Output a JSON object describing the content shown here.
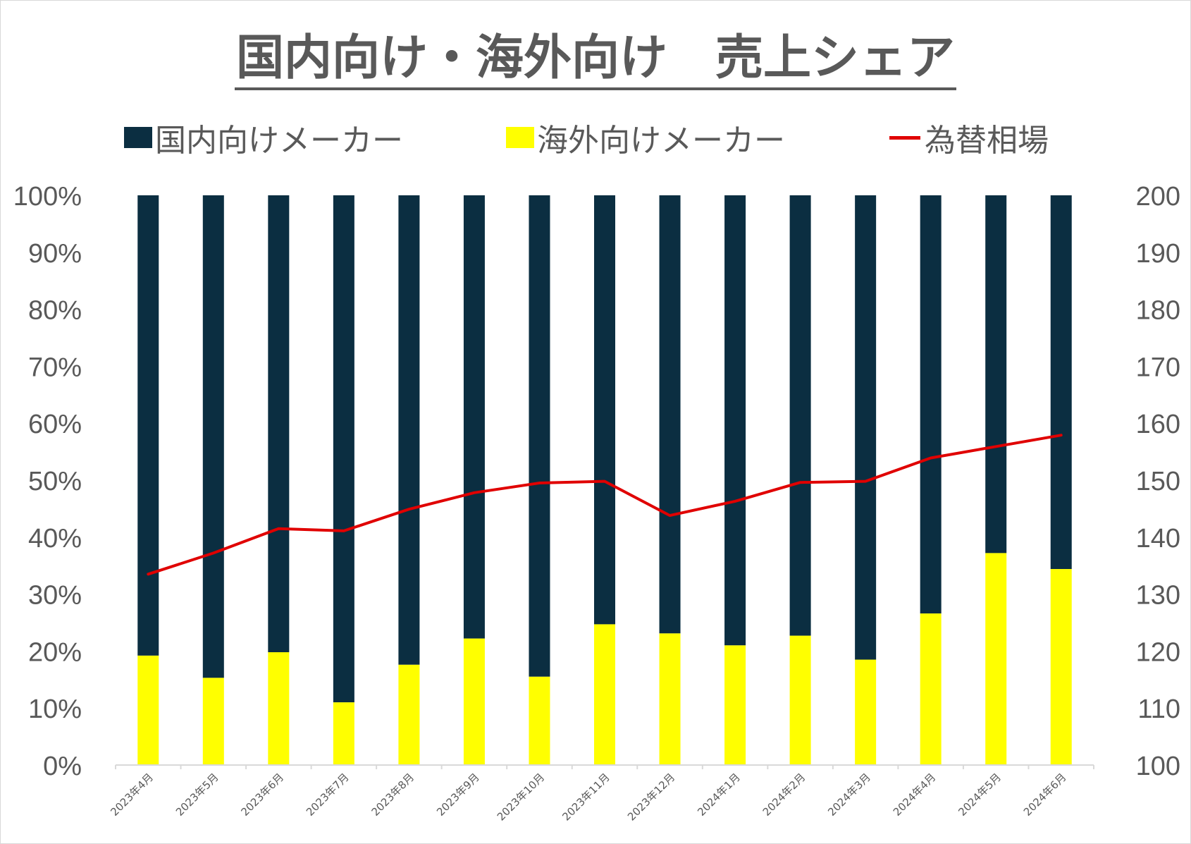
{
  "title": "国内向け・海外向け　売上シェア",
  "legend": {
    "domestic": "国内向けメーカー",
    "overseas": "海外向けメーカー",
    "fx": "為替相場"
  },
  "colors": {
    "domestic": "#0b2e41",
    "overseas": "#ffff00",
    "fx": "#e00000",
    "axis_text": "#595959"
  },
  "chart_data": {
    "type": "bar",
    "stacked": true,
    "categories": [
      "2023年4月",
      "2023年5月",
      "2023年6月",
      "2023年7月",
      "2023年8月",
      "2023年9月",
      "2023年10月",
      "2023年11月",
      "2023年12月",
      "2024年1月",
      "2024年2月",
      "2024年3月",
      "2024年4月",
      "2024年5月",
      "2024年6月"
    ],
    "series": [
      {
        "name": "海外向けメーカー",
        "type": "bar",
        "axis": "left",
        "values": [
          19.2,
          15.3,
          19.8,
          11.0,
          17.6,
          22.2,
          15.5,
          24.7,
          23.1,
          21.0,
          22.7,
          18.5,
          26.6,
          37.2,
          34.4
        ]
      },
      {
        "name": "国内向けメーカー",
        "type": "bar",
        "axis": "left",
        "values": [
          80.8,
          84.7,
          80.2,
          89.0,
          82.4,
          77.8,
          84.5,
          75.3,
          76.9,
          79.0,
          77.3,
          81.5,
          73.4,
          62.8,
          65.6
        ]
      },
      {
        "name": "為替相場",
        "type": "line",
        "axis": "right",
        "values": [
          133.5,
          137.2,
          141.5,
          141.1,
          144.9,
          147.8,
          149.5,
          149.8,
          143.8,
          146.3,
          149.6,
          149.8,
          153.9,
          155.9,
          157.9
        ]
      }
    ],
    "y_left": {
      "min": 0,
      "max": 100,
      "step": 10,
      "format": "percent",
      "ticks": [
        "0%",
        "10%",
        "20%",
        "30%",
        "40%",
        "50%",
        "60%",
        "70%",
        "80%",
        "90%",
        "100%"
      ]
    },
    "y_right": {
      "min": 100,
      "max": 200,
      "step": 10,
      "ticks": [
        "100",
        "110",
        "120",
        "130",
        "140",
        "150",
        "160",
        "170",
        "180",
        "190",
        "200"
      ]
    },
    "legend_position": "top",
    "grid": false
  }
}
